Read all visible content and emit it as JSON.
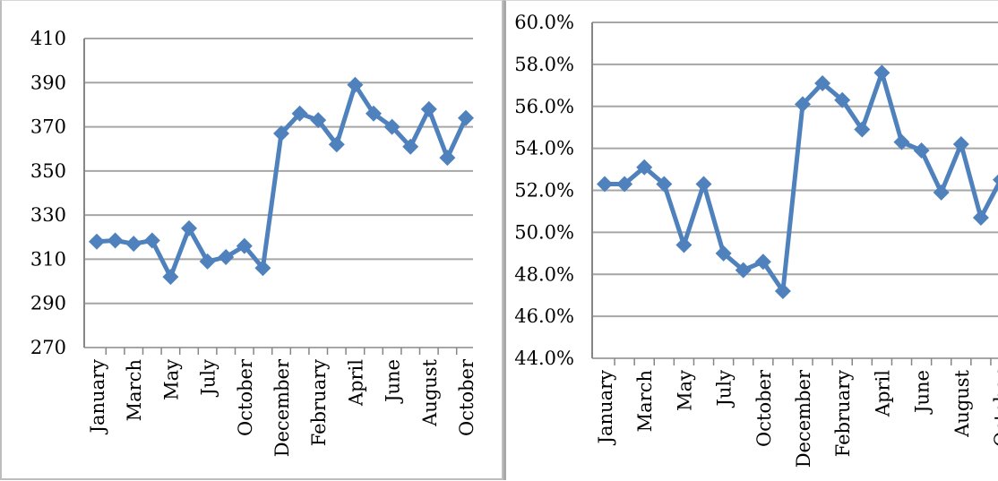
{
  "chart_data": [
    {
      "type": "line",
      "title": "",
      "xlabel": "",
      "ylabel": "",
      "ylim": [
        270,
        410
      ],
      "yticks": [
        "270",
        "290",
        "310",
        "330",
        "350",
        "370",
        "390",
        "410"
      ],
      "ytick_values": [
        270,
        290,
        310,
        330,
        350,
        370,
        390,
        410
      ],
      "category_labels": [
        "January",
        "March",
        "May",
        "July",
        "October",
        "December",
        "February",
        "April",
        "June",
        "August",
        "October"
      ],
      "grid": "horizontal",
      "legend": "none",
      "series": [
        {
          "values": [
            318,
            318.5,
            317,
            318.5,
            302,
            324,
            309,
            311,
            316,
            306,
            367,
            376,
            373,
            362,
            389,
            376,
            370,
            361,
            378,
            356,
            374
          ]
        }
      ]
    },
    {
      "type": "line",
      "title": "",
      "xlabel": "",
      "ylabel": "",
      "ylim": [
        44.0,
        60.0
      ],
      "yticks": [
        "44.0%",
        "46.0%",
        "48.0%",
        "50.0%",
        "52.0%",
        "54.0%",
        "56.0%",
        "58.0%",
        "60.0%"
      ],
      "ytick_values": [
        44,
        46,
        48,
        50,
        52,
        54,
        56,
        58,
        60
      ],
      "category_labels": [
        "January",
        "March",
        "May",
        "July",
        "October",
        "December",
        "February",
        "April",
        "June",
        "August",
        "October"
      ],
      "grid": "horizontal",
      "legend": "none",
      "series": [
        {
          "values": [
            52.3,
            52.3,
            53.1,
            52.3,
            49.4,
            52.3,
            49.0,
            48.2,
            48.6,
            47.2,
            56.1,
            57.1,
            56.3,
            54.9,
            57.6,
            54.3,
            53.9,
            51.9,
            54.2,
            50.7,
            52.5
          ]
        }
      ]
    }
  ],
  "colors": {
    "series": "#4f81bd",
    "grid": "#a6a6a6",
    "axis": "#868686"
  }
}
